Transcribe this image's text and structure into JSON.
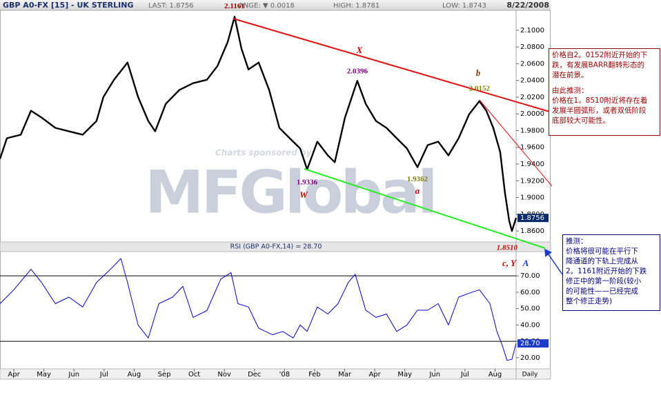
{
  "header": {
    "symbol": "GBP A0-FX [15] - UK STERLING",
    "last": "LAST: 1.8756",
    "change": "ANGE: ▼ 0.0018",
    "high": "HIGH: 1.8781",
    "low": "LOW: 1.8743",
    "date": "8/22/2008",
    "sponsor": "Charts sponsored by",
    "logo": "MFGlobal",
    "frequency": "Daily"
  },
  "chart_data": [
    {
      "type": "line",
      "title": "GBP A0-FX [15] - UK STERLING",
      "xlim": [
        -0.46,
        16.7
      ],
      "ylim": [
        1.8477,
        2.1238
      ],
      "yticks": [
        {
          "value": 1.86,
          "label": "1.8600"
        },
        {
          "value": 1.88,
          "label": "1.8800"
        },
        {
          "value": 1.9,
          "label": "1.9000"
        },
        {
          "value": 1.92,
          "label": "1.9200"
        },
        {
          "value": 1.94,
          "label": "1.9400"
        },
        {
          "value": 1.96,
          "label": "1.9600"
        },
        {
          "value": 1.98,
          "label": "1.9800"
        },
        {
          "value": 2.0,
          "label": "2.0000"
        },
        {
          "value": 2.02,
          "label": "2.0200"
        },
        {
          "value": 2.04,
          "label": "2.0400"
        },
        {
          "value": 2.06,
          "label": "2.0600"
        },
        {
          "value": 2.08,
          "label": "2.0800"
        },
        {
          "value": 2.1,
          "label": "2.1000"
        }
      ],
      "grid": false,
      "series": [
        {
          "name": "GBP A0-FX",
          "color": "#000000",
          "x": [
            -0.46,
            -0.23,
            0.23,
            0.57,
            0.92,
            1.38,
            1.83,
            2.29,
            2.75,
            2.98,
            3.33,
            3.78,
            4.13,
            4.47,
            4.7,
            5.05,
            5.5,
            5.96,
            6.42,
            6.77,
            7.11,
            7.34,
            7.57,
            7.8,
            8.14,
            8.49,
            8.83,
            9.17,
            9.52,
            9.75,
            10.09,
            10.44,
            10.67,
            11.01,
            11.24,
            11.42,
            11.7,
            12.04,
            12.39,
            12.73,
            13.07,
            13.42,
            13.76,
            14.11,
            14.45,
            14.79,
            15.14,
            15.48,
            15.71,
            15.94,
            16.17,
            16.33,
            16.47,
            16.56,
            16.7
          ],
          "values": [
            1.9463,
            1.9709,
            1.9751,
            2.0038,
            1.9956,
            1.9833,
            1.9792,
            1.9751,
            1.9915,
            2.0203,
            2.0408,
            2.0614,
            2.0203,
            1.9915,
            1.9792,
            2.012,
            2.0285,
            2.0367,
            2.0408,
            2.0573,
            2.086,
            2.1161,
            2.0778,
            2.0531,
            2.0614,
            2.0285,
            1.9833,
            1.9709,
            1.9586,
            1.9336,
            1.9668,
            1.9504,
            1.9422,
            1.9956,
            2.0203,
            2.0396,
            2.012,
            1.9915,
            1.9833,
            1.9709,
            1.9586,
            1.9362,
            1.9627,
            1.9668,
            1.9504,
            1.9709,
            1.9997,
            2.0152,
            2.0038,
            1.9833,
            1.9545,
            1.9052,
            1.8723,
            1.86,
            1.8756
          ]
        }
      ],
      "current": {
        "value": 1.8756,
        "label": "1.8756",
        "color": "#0a2a6a"
      },
      "annotations": [
        {
          "text": "2.1161",
          "value": 2.1161,
          "x": 7.34,
          "color": "#990000"
        },
        {
          "text": "2.0396",
          "value": 2.0396,
          "x": 11.42,
          "color": "#800080"
        },
        {
          "text": "2.0152",
          "value": 2.0152,
          "x": 15.48,
          "color": "#808000"
        },
        {
          "text": "1.9336",
          "value": 1.9336,
          "x": 9.75,
          "color": "#800080"
        },
        {
          "text": "1.9362",
          "value": 1.9362,
          "x": 13.42,
          "color": "#808000"
        },
        {
          "text": "1.8510",
          "value": 1.851,
          "x": 16.4,
          "color": "#cc0000"
        }
      ],
      "wave_labels": [
        "X",
        "b",
        "W",
        "a",
        "c, Y",
        "A"
      ]
    },
    {
      "type": "line",
      "title": "RSI (GBP A0-FX,14) = 28.70",
      "xlim": [
        -0.46,
        16.7
      ],
      "ylim": [
        13.6,
        84.4
      ],
      "xticks": [
        {
          "value": 0,
          "label": "Apr"
        },
        {
          "value": 1,
          "label": "May"
        },
        {
          "value": 2,
          "label": "Jun"
        },
        {
          "value": 3,
          "label": "Jul"
        },
        {
          "value": 4,
          "label": "Aug"
        },
        {
          "value": 5,
          "label": "Sep"
        },
        {
          "value": 6,
          "label": "Oct"
        },
        {
          "value": 7,
          "label": "Nov"
        },
        {
          "value": 8,
          "label": "Dec"
        },
        {
          "value": 9,
          "label": "'08"
        },
        {
          "value": 10,
          "label": "Feb"
        },
        {
          "value": 11,
          "label": "Mar"
        },
        {
          "value": 12,
          "label": "Apr"
        },
        {
          "value": 13,
          "label": "May"
        },
        {
          "value": 14,
          "label": "Jun"
        },
        {
          "value": 15,
          "label": "Jul"
        },
        {
          "value": 16,
          "label": "Aug"
        }
      ],
      "yticks": [
        {
          "value": 20,
          "label": "20.00"
        },
        {
          "value": 30,
          "label": "30.00"
        },
        {
          "value": 40,
          "label": "40.00"
        },
        {
          "value": 50,
          "label": "50.00"
        },
        {
          "value": 60,
          "label": "60.00"
        },
        {
          "value": 70,
          "label": "70.00"
        }
      ],
      "levels": [
        70,
        30
      ],
      "series": [
        {
          "name": "RSI",
          "color": "#0000cc",
          "x": [
            -0.46,
            0,
            0.57,
            0.92,
            1.38,
            1.83,
            2.29,
            2.75,
            3.21,
            3.56,
            3.78,
            4.13,
            4.47,
            4.82,
            5.28,
            5.62,
            5.96,
            6.42,
            6.88,
            7.22,
            7.45,
            7.8,
            8.14,
            8.6,
            8.94,
            9.29,
            9.52,
            9.75,
            10.09,
            10.44,
            10.78,
            11.12,
            11.35,
            11.7,
            12.04,
            12.39,
            12.73,
            13.07,
            13.42,
            13.76,
            14.11,
            14.45,
            14.79,
            15.14,
            15.48,
            15.83,
            16.06,
            16.24,
            16.4,
            16.56,
            16.7
          ],
          "values": [
            53,
            61.5,
            74,
            66,
            53,
            57,
            51,
            66,
            74,
            80.6,
            66,
            40,
            32,
            53,
            57,
            63.6,
            44.6,
            48.8,
            68,
            72,
            53,
            51,
            38,
            34,
            36,
            32,
            40,
            36,
            51,
            46.7,
            53,
            66,
            71,
            49,
            44.6,
            46.7,
            36,
            40,
            49,
            49,
            53,
            40,
            57,
            59.4,
            61.5,
            53,
            36,
            27.6,
            18.3,
            19,
            28.7
          ]
        }
      ],
      "current": {
        "value": 28.7,
        "label": "28.70",
        "color": "#1a3cc8"
      }
    }
  ],
  "notes": [
    {
      "lines": [
        "价格自2。0152附近开始的下",
        "跌，有发展BARR翻转形态的",
        "潜在前景。",
        "由此推测：",
        "价格在1。8510附近将存在着",
        "发展半圆弧形，或者双低阶段",
        "底部较大可能性。"
      ]
    },
    {
      "lines": [
        "推测：",
        "价格将很可能在平行下",
        "降通道的下轨上完成从",
        "2。1161附近开始的下跌",
        "修正中的第一阶段(较小",
        "的可能性——已经完成",
        "整个修正走势)"
      ]
    }
  ]
}
